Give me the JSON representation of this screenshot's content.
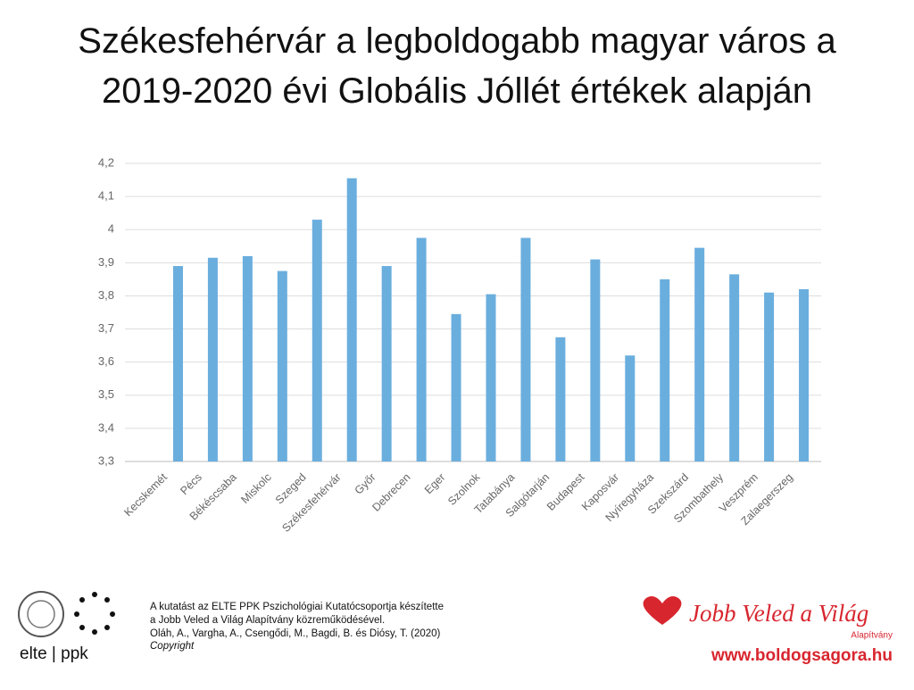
{
  "chart_data": {
    "type": "bar",
    "title": "Székesfehérvár a legboldogabb magyar város a 2019-2020 évi Globális Jóllét értékek alapján",
    "categories": [
      "Kecskemét",
      "Pécs",
      "Békéscsaba",
      "Miskolc",
      "Szeged",
      "Székesfehérvár",
      "Győr",
      "Debrecen",
      "Eger",
      "Szolnok",
      "Tatabánya",
      "Salgótarján",
      "Budapest",
      "Kaposvár",
      "Nyíregyháza",
      "Szekszárd",
      "Szombathely",
      "Veszprém",
      "Zalaegerszeg"
    ],
    "values": [
      3.89,
      3.915,
      3.92,
      3.875,
      4.03,
      4.155,
      3.89,
      3.975,
      3.745,
      3.805,
      3.975,
      3.675,
      3.91,
      3.62,
      3.85,
      3.945,
      3.865,
      3.81,
      3.82
    ],
    "color": "#6aaede",
    "ylim": [
      3.3,
      4.2
    ],
    "yticks": [
      {
        "value": 3.3,
        "label": "3,3"
      },
      {
        "value": 3.4,
        "label": "3,4"
      },
      {
        "value": 3.5,
        "label": "3,5"
      },
      {
        "value": 3.6,
        "label": "3,6"
      },
      {
        "value": 3.7,
        "label": "3,7"
      },
      {
        "value": 3.8,
        "label": "3,8"
      },
      {
        "value": 3.9,
        "label": "3,9"
      },
      4,
      {
        "value": 4.1,
        "label": "4,1"
      },
      {
        "value": 4.2,
        "label": "4,2"
      }
    ],
    "grid": true
  },
  "footer": {
    "credit_lines": [
      "A kutatást az ELTE PPK Pszichológiai Kutatócsoportja készítette",
      "a Jobb Veled a Világ Alapítvány közreműködésével.",
      "Oláh, A., Vargha, A., Csengődi, M., Bagdi, B. és Diósy, T.  (2020)",
      "Copyright"
    ],
    "left_logo": "elte | ppk",
    "right_logo": "Jobb Veled a Világ",
    "right_logo_sub": "Alapítvány",
    "website": "www.boldogsagora.hu"
  }
}
